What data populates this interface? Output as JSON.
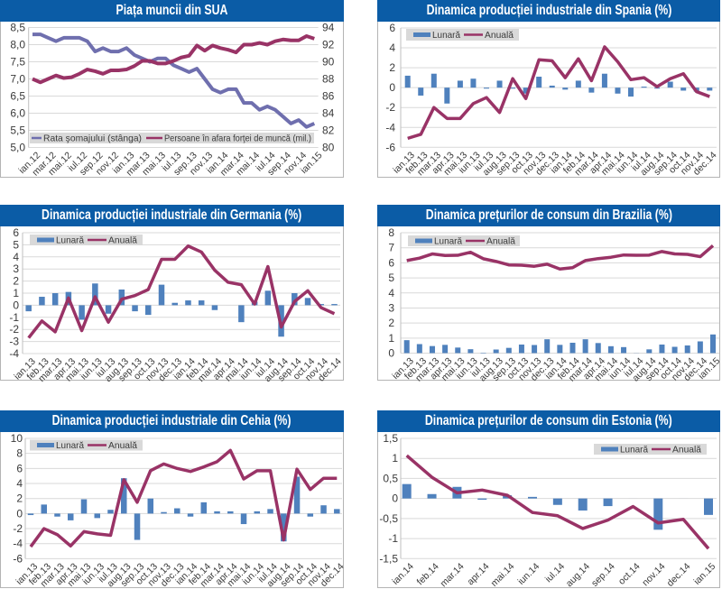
{
  "page": {
    "colors": {
      "title_bar": "#0B5CA6",
      "title_text": "#FFFFFF",
      "grid": "#D9D9D9",
      "axis": "#BFBFBF",
      "legend_bg": "#D9D9D9"
    }
  },
  "chart_data": [
    {
      "id": "us_labor_market",
      "type": "line",
      "title": "Piața muncii din SUA",
      "xlabel": "",
      "ylabel": "",
      "y2label": "",
      "categories": [
        "ian.12",
        "feb.12",
        "mar.12",
        "apr.12",
        "mai.12",
        "iun.12",
        "iul.12",
        "aug.12",
        "sep.12",
        "oct.12",
        "nov.12",
        "dec.12",
        "ian.13",
        "feb.13",
        "mar.13",
        "apr.13",
        "mai.13",
        "iun.13",
        "iul.13",
        "aug.13",
        "sep.13",
        "oct.13",
        "nov.13",
        "dec.13",
        "ian.14",
        "feb.14",
        "mar.14",
        "apr.14",
        "mai.14",
        "iun.14",
        "iul.14",
        "aug.14",
        "sep.14",
        "oct.14",
        "nov.14",
        "dec.14",
        "ian.15"
      ],
      "x_tick_labels": [
        "ian.12",
        "mar.12",
        "mai.12",
        "iul.12",
        "sep.12",
        "nov.12",
        "ian.13",
        "mar.13",
        "mai.13",
        "iul.13",
        "sep.13",
        "nov.13",
        "ian.14",
        "mar.14",
        "mai.14",
        "iul.14",
        "sep.14",
        "nov.14",
        "ian.15"
      ],
      "ylim": [
        5,
        8.5
      ],
      "yticks": [
        5,
        5.5,
        6,
        6.5,
        7,
        7.5,
        8,
        8.5
      ],
      "ytick_labels": [
        "5,0",
        "5,5",
        "6,0",
        "6,5",
        "7,0",
        "7,5",
        "8,0",
        "8,5"
      ],
      "y2lim": [
        80,
        94
      ],
      "y2ticks": [
        80,
        82,
        84,
        86,
        88,
        90,
        92,
        94
      ],
      "y2tick_labels": [
        "80",
        "82",
        "84",
        "86",
        "88",
        "90",
        "92",
        "94"
      ],
      "grid": true,
      "legend": "bottom",
      "series": [
        {
          "name": "Rata şomajului (stânga)",
          "type": "line",
          "axis": "left",
          "color": "#6F6FAE",
          "values": [
            8.3,
            8.3,
            8.2,
            8.1,
            8.2,
            8.2,
            8.2,
            8.1,
            7.8,
            7.9,
            7.8,
            7.8,
            7.9,
            7.7,
            7.6,
            7.5,
            7.6,
            7.6,
            7.4,
            7.3,
            7.2,
            7.3,
            7.0,
            6.7,
            6.6,
            6.7,
            6.7,
            6.3,
            6.3,
            6.1,
            6.2,
            6.1,
            5.9,
            5.7,
            5.8,
            5.6,
            5.7
          ]
        },
        {
          "name": "Persoane în afara forţei de muncă (mil.)",
          "type": "line",
          "axis": "right",
          "color": "#993366",
          "values": [
            88.0,
            87.6,
            88.0,
            88.4,
            88.1,
            88.2,
            88.6,
            89.1,
            88.9,
            88.6,
            89.0,
            89.0,
            89.1,
            89.5,
            90.1,
            90.1,
            89.8,
            89.8,
            90.1,
            90.5,
            90.7,
            91.9,
            91.3,
            91.9,
            91.6,
            91.4,
            91.1,
            92.0,
            92.0,
            92.2,
            92.0,
            92.4,
            92.6,
            92.5,
            92.5,
            93.0,
            92.7
          ]
        }
      ]
    },
    {
      "id": "spain_industrial_production",
      "type": "bar",
      "title": "Dinamica producției industriale din Spania (%)",
      "xlabel": "",
      "ylabel": "",
      "categories": [
        "ian.13",
        "feb.13",
        "mar.13",
        "apr.13",
        "mai.13",
        "iun.13",
        "iul.13",
        "aug.13",
        "sep.13",
        "oct.13",
        "nov.13",
        "dec.13",
        "ian.14",
        "feb.14",
        "mar.14",
        "apr.14",
        "mai.14",
        "iun.14",
        "iul.14",
        "aug.14",
        "sep.14",
        "oct.14",
        "nov.14",
        "dec.14"
      ],
      "ylim": [
        -6,
        6
      ],
      "yticks": [
        -6,
        -4,
        -2,
        0,
        2,
        4,
        6
      ],
      "ytick_labels": [
        "-6",
        "-4",
        "-2",
        "0",
        "2",
        "4",
        "6"
      ],
      "grid": true,
      "legend": "top-left",
      "series": [
        {
          "name": "Lunară",
          "type": "bar",
          "color": "#4F81BD",
          "values": [
            1.2,
            -0.8,
            1.4,
            -1.6,
            0.7,
            0.9,
            -0.1,
            0.7,
            -0.1,
            -0.6,
            1.1,
            0.2,
            -0.2,
            0.7,
            -0.5,
            1.4,
            -0.6,
            -0.9,
            0.1,
            -0.1,
            0.6,
            -0.3,
            -0.4,
            -0.3
          ]
        },
        {
          "name": "Anuală",
          "type": "line",
          "color": "#993366",
          "values": [
            -5.1,
            -4.7,
            -2.0,
            -3.1,
            -3.1,
            -1.6,
            -1.0,
            -2.5,
            0.9,
            -1.1,
            2.8,
            2.7,
            1.0,
            2.9,
            0.7,
            4.1,
            2.6,
            0.8,
            1.0,
            0.1,
            0.9,
            1.4,
            -0.4,
            -0.9
          ]
        }
      ]
    },
    {
      "id": "germany_industrial_production",
      "type": "bar",
      "title": "Dinamica producției industriale din Germania (%)",
      "xlabel": "",
      "ylabel": "",
      "categories": [
        "ian.13",
        "feb.13",
        "mar.13",
        "apr.13",
        "mai.13",
        "iun.13",
        "iul.13",
        "aug.13",
        "sep.13",
        "oct.13",
        "nov.13",
        "dec.13",
        "ian.14",
        "feb.14",
        "mar.14",
        "apr.14",
        "mai.14",
        "iun.14",
        "iul.14",
        "aug.14",
        "sep.14",
        "oct.14",
        "nov.14",
        "dec.14"
      ],
      "ylim": [
        -4,
        6
      ],
      "yticks": [
        -4,
        -3,
        -2,
        -1,
        0,
        1,
        2,
        3,
        4,
        5,
        6
      ],
      "ytick_labels": [
        "-4",
        "-3",
        "-2",
        "-1",
        "0",
        "1",
        "2",
        "3",
        "4",
        "5",
        "6"
      ],
      "grid": true,
      "legend": "top-left",
      "series": [
        {
          "name": "Lunară",
          "type": "bar",
          "color": "#4F81BD",
          "values": [
            -0.5,
            0.7,
            1.0,
            1.1,
            -1.2,
            1.8,
            -0.7,
            1.3,
            -0.5,
            -0.8,
            1.7,
            0.2,
            0.4,
            0.4,
            -0.4,
            0.0,
            -1.4,
            0.3,
            1.2,
            -2.6,
            1.0,
            0.6,
            0.1,
            0.1
          ]
        },
        {
          "name": "Anuală",
          "type": "line",
          "color": "#993366",
          "values": [
            -2.7,
            -1.3,
            -2.2,
            0.6,
            -2.1,
            0.7,
            -1.4,
            0.5,
            0.8,
            1.3,
            3.8,
            3.8,
            4.9,
            4.4,
            2.9,
            1.9,
            1.7,
            0.1,
            3.2,
            -1.8,
            0.3,
            1.2,
            -0.2,
            -0.7
          ]
        }
      ]
    },
    {
      "id": "brazil_consumer_prices",
      "type": "bar",
      "title": "Dinamica prețurilor de consum din Brazilia (%)",
      "xlabel": "",
      "ylabel": "",
      "categories": [
        "ian.13",
        "feb.13",
        "mar.13",
        "apr.13",
        "mai.13",
        "iun.13",
        "iul.13",
        "aug.13",
        "sep.13",
        "oct.13",
        "nov.13",
        "dec.13",
        "ian.14",
        "feb.14",
        "mar.14",
        "apr.14",
        "mai.14",
        "iun.14",
        "iul.14",
        "aug.14",
        "sep.14",
        "oct.14",
        "nov.14",
        "dec.14",
        "ian.15"
      ],
      "ylim": [
        0,
        8
      ],
      "yticks": [
        0,
        1,
        2,
        3,
        4,
        5,
        6,
        7,
        8
      ],
      "ytick_labels": [
        "0",
        "1",
        "2",
        "3",
        "4",
        "5",
        "6",
        "7",
        "8"
      ],
      "grid": true,
      "legend": "top-left",
      "series": [
        {
          "name": "Lunară",
          "type": "bar",
          "color": "#4F81BD",
          "values": [
            0.86,
            0.6,
            0.47,
            0.55,
            0.37,
            0.26,
            0.03,
            0.24,
            0.35,
            0.57,
            0.54,
            0.92,
            0.55,
            0.69,
            0.92,
            0.67,
            0.46,
            0.4,
            0.01,
            0.25,
            0.57,
            0.42,
            0.51,
            0.78,
            1.24
          ]
        },
        {
          "name": "Anuală",
          "type": "line",
          "color": "#993366",
          "values": [
            6.15,
            6.31,
            6.59,
            6.49,
            6.5,
            6.7,
            6.27,
            6.09,
            5.86,
            5.84,
            5.77,
            5.91,
            5.59,
            5.68,
            6.15,
            6.28,
            6.37,
            6.52,
            6.5,
            6.51,
            6.75,
            6.59,
            6.56,
            6.41,
            7.14
          ]
        }
      ]
    },
    {
      "id": "czech_industrial_production",
      "type": "bar",
      "title": "Dinamica producției industriale din Cehia (%)",
      "xlabel": "",
      "ylabel": "",
      "categories": [
        "ian.13",
        "feb.13",
        "mar.13",
        "apr.13",
        "mai.13",
        "iun.13",
        "iul.13",
        "aug.13",
        "sep.13",
        "oct.13",
        "nov.13",
        "dec.13",
        "ian.14",
        "feb.14",
        "mar.14",
        "apr.14",
        "mai.14",
        "iun.14",
        "iul.14",
        "aug.14",
        "sep.14",
        "oct.14",
        "nov.14",
        "dec.14"
      ],
      "ylim": [
        -6,
        10
      ],
      "yticks": [
        -6,
        -4,
        -2,
        0,
        2,
        4,
        6,
        8,
        10
      ],
      "ytick_labels": [
        "-6",
        "-4",
        "-2",
        "0",
        "2",
        "4",
        "6",
        "8",
        "10"
      ],
      "grid": true,
      "legend": "top-left",
      "series": [
        {
          "name": "Lunară",
          "type": "bar",
          "color": "#4F81BD",
          "values": [
            -0.2,
            1.2,
            -0.4,
            -0.9,
            1.9,
            -0.6,
            0.5,
            4.7,
            -3.5,
            2.0,
            0.2,
            0.7,
            -0.4,
            1.5,
            0.3,
            0.3,
            -1.4,
            0.3,
            0.6,
            -3.7,
            4.9,
            -0.4,
            1.1,
            0.6
          ]
        },
        {
          "name": "Anuală",
          "type": "line",
          "color": "#993366",
          "values": [
            -4.4,
            -2.0,
            -2.8,
            -4.3,
            -2.4,
            -2.7,
            -2.9,
            4.5,
            1.5,
            5.7,
            6.6,
            6.0,
            5.6,
            6.2,
            6.9,
            8.4,
            4.6,
            5.7,
            5.7,
            -3.5,
            5.9,
            3.2,
            4.7,
            4.7
          ]
        }
      ]
    },
    {
      "id": "estonia_consumer_prices",
      "type": "bar",
      "title": "Dinamica prețurilor de consum din Estonia (%)",
      "xlabel": "",
      "ylabel": "",
      "categories": [
        "ian.14",
        "feb.14",
        "mar.14",
        "apr.14",
        "mai.14",
        "iun.14",
        "iul.14",
        "aug.14",
        "sep.14",
        "oct.14",
        "nov.14",
        "dec.14",
        "ian.15"
      ],
      "ylim": [
        -1.5,
        1.5
      ],
      "yticks": [
        -1.5,
        -1,
        -0.5,
        0,
        0.5,
        1,
        1.5
      ],
      "ytick_labels": [
        "-1,5",
        "-1",
        "-0,5",
        "0",
        "0,5",
        "1",
        "1,5"
      ],
      "grid": true,
      "legend": "top-right",
      "series": [
        {
          "name": "Lunară",
          "type": "bar",
          "color": "#4F81BD",
          "values": [
            0.36,
            0.11,
            0.29,
            -0.03,
            0.08,
            0.04,
            -0.16,
            -0.3,
            -0.19,
            0.0,
            -0.78,
            0.0,
            -0.41
          ]
        },
        {
          "name": "Anuală",
          "type": "line",
          "color": "#993366",
          "values": [
            1.07,
            0.53,
            0.14,
            0.21,
            0.08,
            -0.35,
            -0.43,
            -0.75,
            -0.54,
            -0.2,
            -0.61,
            -0.52,
            -1.25
          ]
        }
      ]
    }
  ]
}
